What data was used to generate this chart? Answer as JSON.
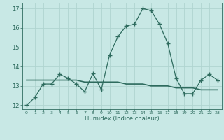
{
  "xlabel": "Humidex (Indice chaleur)",
  "x": [
    0,
    1,
    2,
    3,
    4,
    5,
    6,
    7,
    8,
    9,
    10,
    11,
    12,
    13,
    14,
    15,
    16,
    17,
    18,
    19,
    20,
    21,
    22,
    23
  ],
  "y_main": [
    12.0,
    12.4,
    13.1,
    13.1,
    13.6,
    13.4,
    13.1,
    12.7,
    13.65,
    12.8,
    14.6,
    15.55,
    16.1,
    16.2,
    17.0,
    16.9,
    16.2,
    15.2,
    13.4,
    12.6,
    12.6,
    13.3,
    13.6,
    13.3
  ],
  "y_avg": [
    13.3,
    13.3,
    13.3,
    13.3,
    13.3,
    13.3,
    13.3,
    13.2,
    13.2,
    13.2,
    13.2,
    13.2,
    13.1,
    13.1,
    13.1,
    13.0,
    13.0,
    13.0,
    12.9,
    12.9,
    12.9,
    12.8,
    12.8,
    12.8
  ],
  "line_color": "#2e6b5e",
  "bg_color": "#c8e8e5",
  "grid_color": "#b0d4d0",
  "ylim": [
    11.8,
    17.3
  ],
  "yticks": [
    12,
    13,
    14,
    15,
    16,
    17
  ],
  "xlim": [
    -0.5,
    23.5
  ]
}
